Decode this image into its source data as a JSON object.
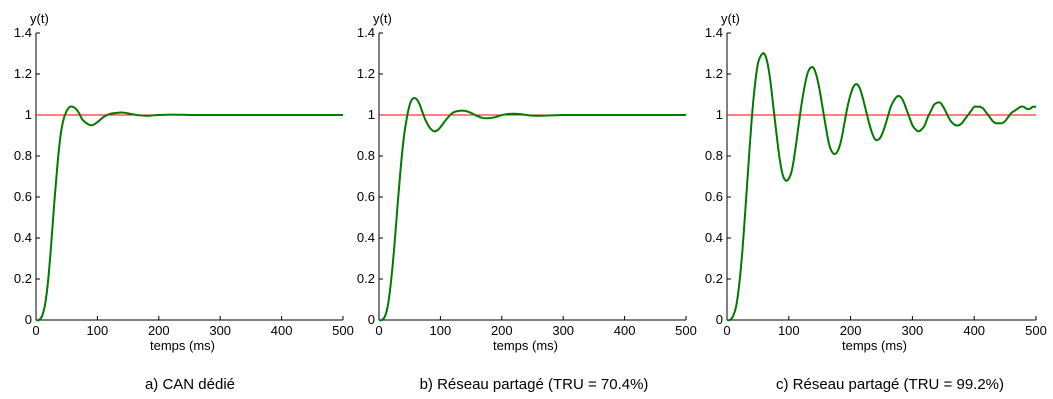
{
  "chart_data": [
    {
      "type": "line",
      "caption": "a) CAN dédié",
      "xlabel": "temps (ms)",
      "ylabel": "y(t)",
      "xlim": [
        0,
        500
      ],
      "ylim": [
        0,
        1.4
      ],
      "xticks": [
        "0",
        "100",
        "200",
        "300",
        "400",
        "500"
      ],
      "yticks": [
        "0",
        "0.2",
        "0.4",
        "0.6",
        "0.8",
        "1",
        "1.2",
        "1.4"
      ],
      "grid": false,
      "reference": {
        "y": 1,
        "color": "#ff0000"
      },
      "series": [
        {
          "color": "#007a00",
          "x": [
            0,
            5,
            10,
            15,
            20,
            25,
            30,
            35,
            40,
            45,
            50,
            55,
            60,
            65,
            70,
            75,
            80,
            85,
            90,
            95,
            100,
            110,
            120,
            130,
            140,
            150,
            160,
            170,
            180,
            190,
            200,
            220,
            240,
            260,
            300,
            350,
            400,
            450,
            500
          ],
          "y": [
            0,
            0.0,
            0.02,
            0.08,
            0.2,
            0.38,
            0.58,
            0.76,
            0.9,
            0.98,
            1.02,
            1.04,
            1.04,
            1.03,
            1.01,
            0.98,
            0.965,
            0.955,
            0.95,
            0.955,
            0.965,
            0.99,
            1.005,
            1.01,
            1.012,
            1.008,
            1.002,
            0.998,
            0.996,
            0.998,
            1.0,
            1.002,
            1.001,
            1.0,
            1.0,
            1.0,
            1.0,
            1.0,
            1.0
          ]
        }
      ]
    },
    {
      "type": "line",
      "caption": "b) Réseau partagé (TRU = 70.4%)",
      "xlabel": "temps (ms)",
      "ylabel": "y(t)",
      "xlim": [
        0,
        500
      ],
      "ylim": [
        0,
        1.4
      ],
      "xticks": [
        "0",
        "100",
        "200",
        "300",
        "400",
        "500"
      ],
      "yticks": [
        "0",
        "0.2",
        "0.4",
        "0.6",
        "0.8",
        "1",
        "1.2",
        "1.4"
      ],
      "grid": false,
      "reference": {
        "y": 1,
        "color": "#ff0000"
      },
      "series": [
        {
          "color": "#007a00",
          "x": [
            0,
            5,
            10,
            15,
            20,
            25,
            30,
            35,
            40,
            45,
            50,
            55,
            60,
            65,
            70,
            75,
            80,
            85,
            90,
            95,
            100,
            110,
            120,
            130,
            140,
            150,
            160,
            170,
            180,
            190,
            200,
            210,
            220,
            230,
            240,
            250,
            260,
            280,
            300,
            350,
            400,
            450,
            500
          ],
          "y": [
            0,
            0.0,
            0.02,
            0.08,
            0.2,
            0.36,
            0.55,
            0.73,
            0.88,
            0.98,
            1.05,
            1.08,
            1.08,
            1.06,
            1.02,
            0.98,
            0.95,
            0.93,
            0.92,
            0.925,
            0.94,
            0.98,
            1.01,
            1.02,
            1.02,
            1.01,
            0.995,
            0.985,
            0.985,
            0.99,
            1.0,
            1.005,
            1.006,
            1.004,
            1.0,
            0.997,
            0.996,
            0.998,
            1.0,
            1.0,
            1.0,
            1.0,
            1.0
          ]
        }
      ]
    },
    {
      "type": "line",
      "caption": "c) Réseau partagé (TRU = 99.2%)",
      "xlabel": "temps (ms)",
      "ylabel": "y(t)",
      "xlim": [
        0,
        500
      ],
      "ylim": [
        0,
        1.4
      ],
      "xticks": [
        "0",
        "100",
        "200",
        "300",
        "400",
        "500"
      ],
      "yticks": [
        "0",
        "0.2",
        "0.4",
        "0.6",
        "0.8",
        "1",
        "1.2",
        "1.4"
      ],
      "grid": false,
      "reference": {
        "y": 1,
        "color": "#ff0000"
      },
      "series": [
        {
          "color": "#007a00",
          "x": [
            0,
            5,
            10,
            15,
            20,
            25,
            30,
            35,
            40,
            45,
            50,
            55,
            60,
            65,
            70,
            75,
            80,
            85,
            90,
            95,
            100,
            105,
            110,
            115,
            120,
            125,
            130,
            135,
            140,
            145,
            150,
            155,
            160,
            165,
            170,
            175,
            180,
            185,
            190,
            195,
            200,
            205,
            210,
            215,
            220,
            225,
            230,
            235,
            240,
            245,
            250,
            255,
            260,
            265,
            270,
            275,
            280,
            285,
            290,
            295,
            300,
            305,
            310,
            315,
            320,
            325,
            330,
            335,
            340,
            345,
            350,
            355,
            360,
            365,
            370,
            375,
            380,
            385,
            390,
            395,
            400,
            405,
            410,
            415,
            420,
            425,
            430,
            435,
            440,
            445,
            450,
            455,
            460,
            465,
            470,
            475,
            480,
            485,
            490,
            495,
            500
          ],
          "y": [
            0,
            0.0,
            0.02,
            0.07,
            0.18,
            0.34,
            0.55,
            0.77,
            0.98,
            1.14,
            1.25,
            1.29,
            1.3,
            1.26,
            1.17,
            1.04,
            0.91,
            0.79,
            0.71,
            0.68,
            0.69,
            0.73,
            0.82,
            0.93,
            1.04,
            1.13,
            1.2,
            1.23,
            1.23,
            1.19,
            1.12,
            1.03,
            0.94,
            0.86,
            0.82,
            0.81,
            0.83,
            0.88,
            0.96,
            1.04,
            1.1,
            1.14,
            1.15,
            1.13,
            1.08,
            1.02,
            0.96,
            0.91,
            0.88,
            0.88,
            0.9,
            0.94,
            0.99,
            1.04,
            1.07,
            1.09,
            1.09,
            1.07,
            1.03,
            0.99,
            0.95,
            0.93,
            0.92,
            0.93,
            0.95,
            0.99,
            1.02,
            1.05,
            1.06,
            1.06,
            1.04,
            1.01,
            0.98,
            0.96,
            0.95,
            0.95,
            0.96,
            0.98,
            1.0,
            1.02,
            1.04,
            1.04,
            1.04,
            1.03,
            1.01,
            0.99,
            0.97,
            0.96,
            0.96,
            0.96,
            0.97,
            0.99,
            1.01,
            1.02,
            1.03,
            1.04,
            1.04,
            1.03,
            1.03,
            1.04,
            1.04
          ]
        }
      ]
    }
  ]
}
